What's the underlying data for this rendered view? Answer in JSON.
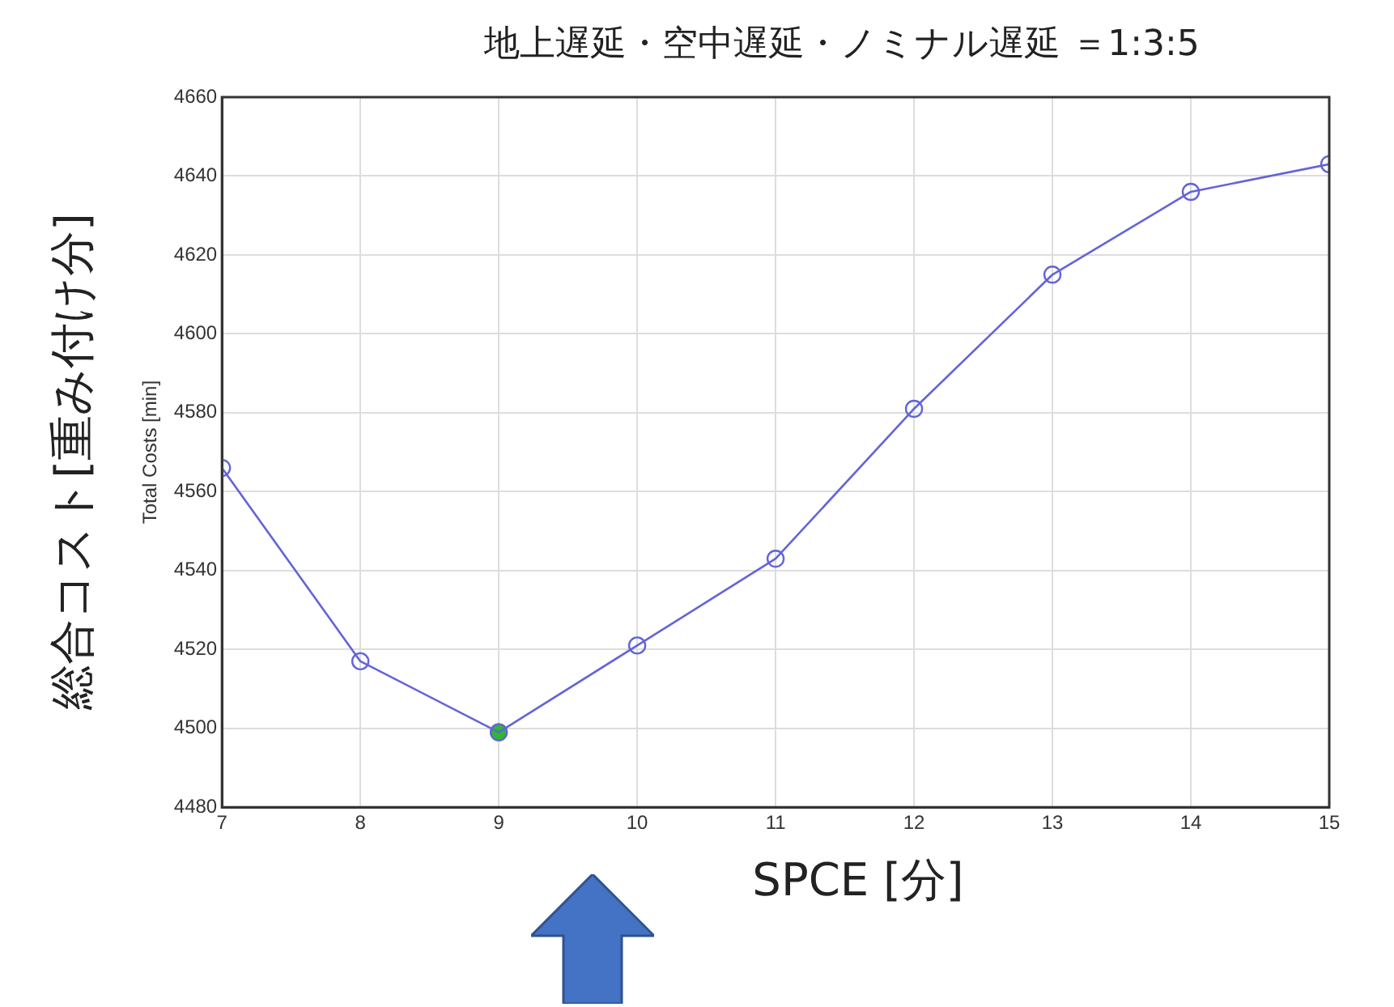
{
  "chart_data": {
    "type": "line",
    "title": "地上遅延・空中遅延・ノミナル遅延 ＝1:3:5",
    "xlabel": "SPCE [分]",
    "ylabel": "Total Costs [min]",
    "annotations": [
      "総合コスト[重み付け分]"
    ],
    "x": [
      7,
      8,
      9,
      10,
      11,
      12,
      13,
      14,
      15
    ],
    "series": [
      {
        "type": "line",
        "color": "#6464d8",
        "values": [
          4566,
          4517,
          4499,
          4521,
          4543,
          4581,
          4615,
          4636,
          4643
        ]
      },
      {
        "type": "scatter",
        "color": "#2db82d",
        "x": [
          9
        ],
        "values": [
          4499
        ]
      }
    ],
    "xlim": [
      7,
      15
    ],
    "xticks": [
      7,
      8,
      9,
      10,
      11,
      12,
      13,
      14,
      15
    ],
    "ylim": [
      4480,
      4660
    ],
    "yticks": [
      4480,
      4500,
      4520,
      4540,
      4560,
      4580,
      4600,
      4620,
      4640,
      4660
    ],
    "grid": true,
    "legend": false,
    "marker": "circle",
    "line_style": "solid"
  }
}
